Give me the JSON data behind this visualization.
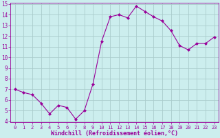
{
  "x": [
    0,
    1,
    2,
    3,
    4,
    5,
    6,
    7,
    8,
    9,
    10,
    11,
    12,
    13,
    14,
    15,
    16,
    17,
    18,
    19,
    20,
    21,
    22,
    23
  ],
  "y": [
    7.0,
    6.7,
    6.5,
    5.7,
    4.7,
    5.5,
    5.3,
    4.2,
    5.0,
    7.5,
    11.5,
    13.8,
    14.0,
    13.7,
    14.8,
    14.3,
    13.8,
    13.4,
    12.5,
    11.1,
    10.7,
    11.3,
    11.3,
    11.9
  ],
  "line_color": "#990099",
  "marker": "D",
  "marker_size": 2,
  "bg_color": "#cceeee",
  "grid_color": "#aacccc",
  "xlabel": "Windchill (Refroidissement éolien,°C)",
  "xlabel_color": "#990099",
  "tick_color": "#990099",
  "spine_color": "#990099",
  "ylim": [
    4,
    15
  ],
  "xlim": [
    -0.5,
    23.5
  ],
  "yticks": [
    4,
    5,
    6,
    7,
    8,
    9,
    10,
    11,
    12,
    13,
    14,
    15
  ],
  "xticks": [
    0,
    1,
    2,
    3,
    4,
    5,
    6,
    7,
    8,
    9,
    10,
    11,
    12,
    13,
    14,
    15,
    16,
    17,
    18,
    19,
    20,
    21,
    22,
    23
  ],
  "ytick_fontsize": 5.5,
  "xtick_fontsize": 5.0,
  "xlabel_fontsize": 6.0
}
